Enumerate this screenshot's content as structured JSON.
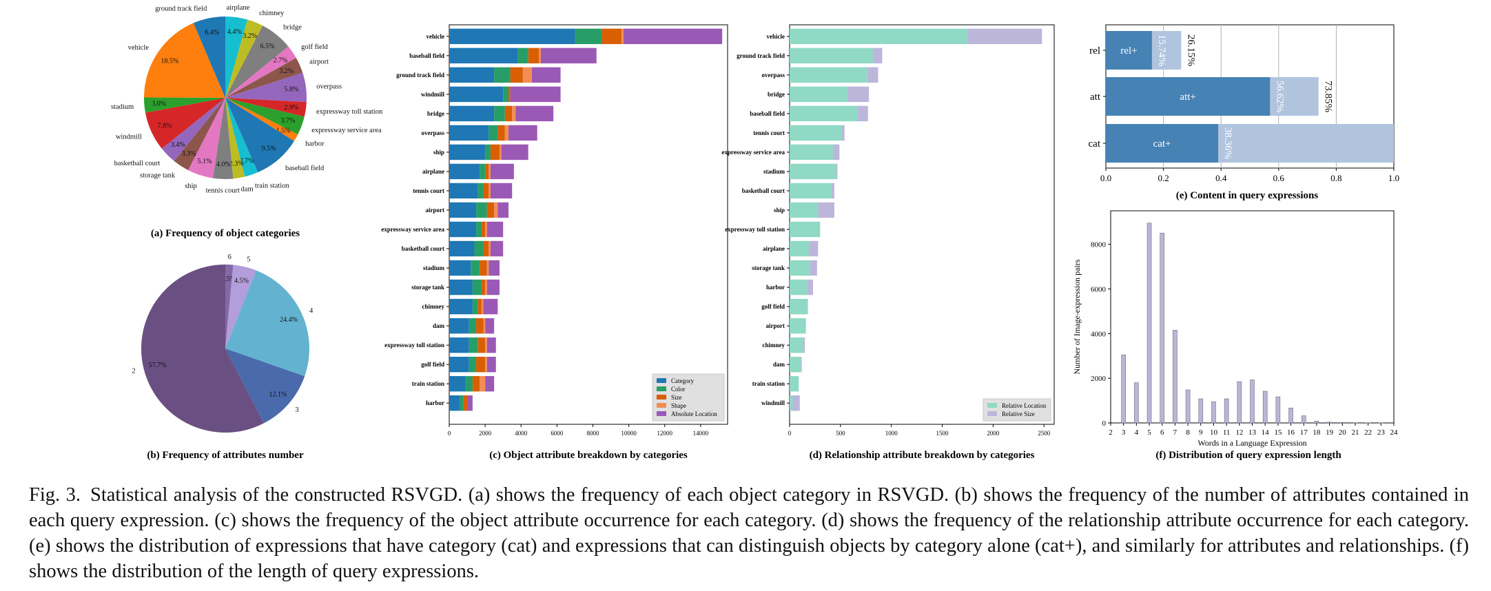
{
  "colors": {
    "category": "#1f77b4",
    "color": "#279e68",
    "size": "#d95f02",
    "shape": "#f28e55",
    "absolute_location": "#9b59b6",
    "relative_location": "#8fd9c5",
    "relative_size": "#bdb6db",
    "content_dark": "#4682b4",
    "content_light": "#b0c4de",
    "length_bars": "#bcb5d6"
  },
  "chart_data": [
    {
      "id": "a",
      "type": "pie",
      "caption": "(a) Frequency of object categories",
      "slices": [
        {
          "label": "airplane",
          "value": 4.4,
          "pct_label": "4.4%",
          "color": "#17becf"
        },
        {
          "label": "chimney",
          "value": 3.2,
          "pct_label": "3.2%",
          "color": "#bcbd22"
        },
        {
          "label": "bridge",
          "value": 6.5,
          "pct_label": "6.5%",
          "color": "#7f7f7f"
        },
        {
          "label": "golf field",
          "value": 2.7,
          "pct_label": "2.7%",
          "color": "#e377c2"
        },
        {
          "label": "airport",
          "value": 3.2,
          "pct_label": "3.2%",
          "color": "#8c564b"
        },
        {
          "label": "overpass",
          "value": 5.8,
          "pct_label": "5.8%",
          "color": "#9467bd"
        },
        {
          "label": "expressway toll station",
          "value": 2.9,
          "pct_label": "2.9%",
          "color": "#d62728"
        },
        {
          "label": "expressway service area",
          "value": 3.7,
          "pct_label": "3.7%",
          "color": "#2ca02c"
        },
        {
          "label": "harbor",
          "value": 1.5,
          "pct_label": "1.5%",
          "color": "#ff7f0e"
        },
        {
          "label": "baseball field",
          "value": 9.5,
          "pct_label": "9.5%",
          "color": "#1f77b4"
        },
        {
          "label": "train station",
          "value": 2.7,
          "pct_label": "2.7%",
          "color": "#17becf"
        },
        {
          "label": "dam",
          "value": 2.3,
          "pct_label": "2.3%",
          "color": "#bcbd22"
        },
        {
          "label": "tennis court",
          "value": 4.0,
          "pct_label": "4.0%",
          "color": "#7f7f7f"
        },
        {
          "label": "ship",
          "value": 5.1,
          "pct_label": "5.1%",
          "color": "#e377c2"
        },
        {
          "label": "storage tank",
          "value": 3.3,
          "pct_label": "3.3%",
          "color": "#8c564b"
        },
        {
          "label": "basketball court",
          "value": 3.4,
          "pct_label": "3.4%",
          "color": "#9467bd"
        },
        {
          "label": "windmill",
          "value": 7.8,
          "pct_label": "7.8%",
          "color": "#d62728"
        },
        {
          "label": "stadium",
          "value": 3.0,
          "pct_label": "3.0%",
          "color": "#2ca02c"
        },
        {
          "label": "vehicle",
          "value": 18.5,
          "pct_label": "18.5%",
          "color": "#ff7f0e"
        },
        {
          "label": "ground track field",
          "value": 6.4,
          "pct_label": "6.4%",
          "color": "#1f77b4"
        }
      ]
    },
    {
      "id": "b",
      "type": "pie",
      "caption": "(b) Frequency of attributes number",
      "slices": [
        {
          "label": "6",
          "value": 1.5,
          "pct_label": "1.5%",
          "color": "#8468a8"
        },
        {
          "label": "5",
          "value": 4.5,
          "pct_label": "4.5%",
          "color": "#b39ddb"
        },
        {
          "label": "4",
          "value": 24.4,
          "pct_label": "24.4%",
          "color": "#63b3d0"
        },
        {
          "label": "3",
          "value": 12.1,
          "pct_label": "12.1%",
          "color": "#4a6aac"
        },
        {
          "label": "2",
          "value": 57.7,
          "pct_label": "57.7%",
          "color": "#6a5082"
        }
      ]
    },
    {
      "id": "c",
      "type": "bar",
      "orientation": "horizontal",
      "stacked": true,
      "caption": "(c) Object attribute breakdown by categories",
      "xlim": [
        0,
        15500
      ],
      "xticks": [
        "0",
        "2000",
        "4000",
        "6000",
        "8000",
        "10000",
        "12000",
        "14000"
      ],
      "legend_position": "lower right",
      "categories": [
        "vehicle",
        "baseball field",
        "ground track field",
        "windmill",
        "bridge",
        "overpass",
        "ship",
        "airplane",
        "tennis court",
        "airport",
        "expressway service area",
        "basketball court",
        "stadium",
        "storage tank",
        "chimney",
        "dam",
        "expressway toll station",
        "golf field",
        "train station",
        "harbor"
      ],
      "series": [
        {
          "name": "Category",
          "values": [
            7000,
            3800,
            2500,
            3000,
            2500,
            2200,
            2000,
            1700,
            1600,
            1500,
            1500,
            1400,
            1200,
            1300,
            1300,
            1100,
            1100,
            1100,
            900,
            600
          ]
        },
        {
          "name": "Color",
          "values": [
            1500,
            600,
            900,
            300,
            600,
            500,
            300,
            300,
            300,
            600,
            300,
            500,
            500,
            500,
            300,
            400,
            500,
            400,
            400,
            200
          ]
        },
        {
          "name": "Size",
          "values": [
            1100,
            600,
            700,
            100,
            400,
            400,
            500,
            200,
            300,
            400,
            200,
            300,
            400,
            200,
            200,
            400,
            400,
            500,
            400,
            200
          ]
        },
        {
          "name": "Shape",
          "values": [
            100,
            100,
            500,
            0,
            200,
            200,
            100,
            100,
            100,
            200,
            100,
            100,
            100,
            100,
            100,
            100,
            100,
            100,
            300,
            0
          ]
        },
        {
          "name": "Absolute Location",
          "values": [
            5500,
            3100,
            1600,
            2800,
            2100,
            1600,
            1500,
            1300,
            1200,
            600,
            900,
            700,
            600,
            700,
            800,
            500,
            500,
            500,
            500,
            300
          ]
        }
      ]
    },
    {
      "id": "d",
      "type": "bar",
      "orientation": "horizontal",
      "stacked": true,
      "caption": "(d) Relationship attribute breakdown by categories",
      "xlim": [
        0,
        2600
      ],
      "xticks": [
        "0",
        "500",
        "1000",
        "1500",
        "2000",
        "2500"
      ],
      "legend_position": "lower right",
      "categories": [
        "vehicle",
        "ground track field",
        "overpass",
        "bridge",
        "baseball field",
        "tennis court",
        "expressway service area",
        "stadium",
        "basketball court",
        "ship",
        "expressway toll station",
        "airplane",
        "storage tank",
        "harbor",
        "golf field",
        "airport",
        "chimney",
        "dam",
        "train station",
        "windmill"
      ],
      "series": [
        {
          "name": "Relative Location",
          "values": [
            1750,
            820,
            760,
            570,
            670,
            510,
            430,
            460,
            410,
            280,
            300,
            190,
            200,
            170,
            180,
            160,
            130,
            110,
            90,
            30
          ]
        },
        {
          "name": "Relative Size",
          "values": [
            730,
            90,
            110,
            210,
            100,
            30,
            60,
            10,
            30,
            160,
            0,
            90,
            70,
            60,
            0,
            0,
            20,
            10,
            0,
            70
          ]
        }
      ]
    },
    {
      "id": "e",
      "type": "bar",
      "orientation": "horizontal",
      "caption": "(e) Content in query expressions",
      "xlim": [
        0,
        1.0
      ],
      "xticks": [
        "0.0",
        "0.2",
        "0.4",
        "0.6",
        "0.8",
        "1.0"
      ],
      "categories": [
        "rel",
        "att",
        "cat"
      ],
      "series": [
        {
          "name": "dark",
          "labels": [
            "rel+",
            "att+",
            "cat+"
          ],
          "values": [
            0.16,
            0.57,
            0.39
          ]
        },
        {
          "name": "light",
          "values": [
            0.2615,
            0.7385,
            1.0
          ]
        }
      ],
      "annotations": {
        "rotated": [
          "15.74%",
          "56.62%",
          "38.36%"
        ],
        "outside": [
          "26.15%",
          "73.85%",
          ""
        ]
      }
    },
    {
      "id": "f",
      "type": "bar",
      "caption": "(f) Distribution of query expression length",
      "xlabel": "Words in a Language Expression",
      "ylabel": "Number of Image-expression pairs",
      "xlim": [
        2,
        24
      ],
      "ylim": [
        0,
        9500
      ],
      "yticks": [
        "0",
        "2000",
        "4000",
        "6000",
        "8000"
      ],
      "xticks": [
        "2",
        "3",
        "4",
        "5",
        "6",
        "7",
        "8",
        "9",
        "10",
        "11",
        "12",
        "13",
        "14",
        "15",
        "16",
        "17",
        "18",
        "19",
        "20",
        "21",
        "22",
        "23",
        "24"
      ],
      "x": [
        3,
        4,
        5,
        6,
        7,
        8,
        9,
        10,
        11,
        12,
        13,
        14,
        15,
        16,
        17,
        18,
        19,
        20,
        21,
        22,
        23
      ],
      "values": [
        3050,
        1800,
        8950,
        8500,
        4150,
        1480,
        1080,
        950,
        1080,
        1850,
        1930,
        1420,
        1170,
        670,
        320,
        80,
        40,
        20,
        10,
        5,
        5
      ]
    }
  ],
  "caption": {
    "label": "Fig. 3.",
    "text": "Statistical analysis of the constructed RSVGD. (a) shows the frequency of each object category in RSVGD. (b) shows the frequency of the number of attributes contained in each query expression. (c) shows the frequency of the object attribute occurrence for each category. (d) shows the frequency of the relationship attribute occurrence for each category. (e) shows the distribution of expressions that have category (cat) and expressions that can distinguish objects by category alone (cat+), and similarly for attributes and relationships. (f) shows the distribution of the length of query expressions."
  }
}
